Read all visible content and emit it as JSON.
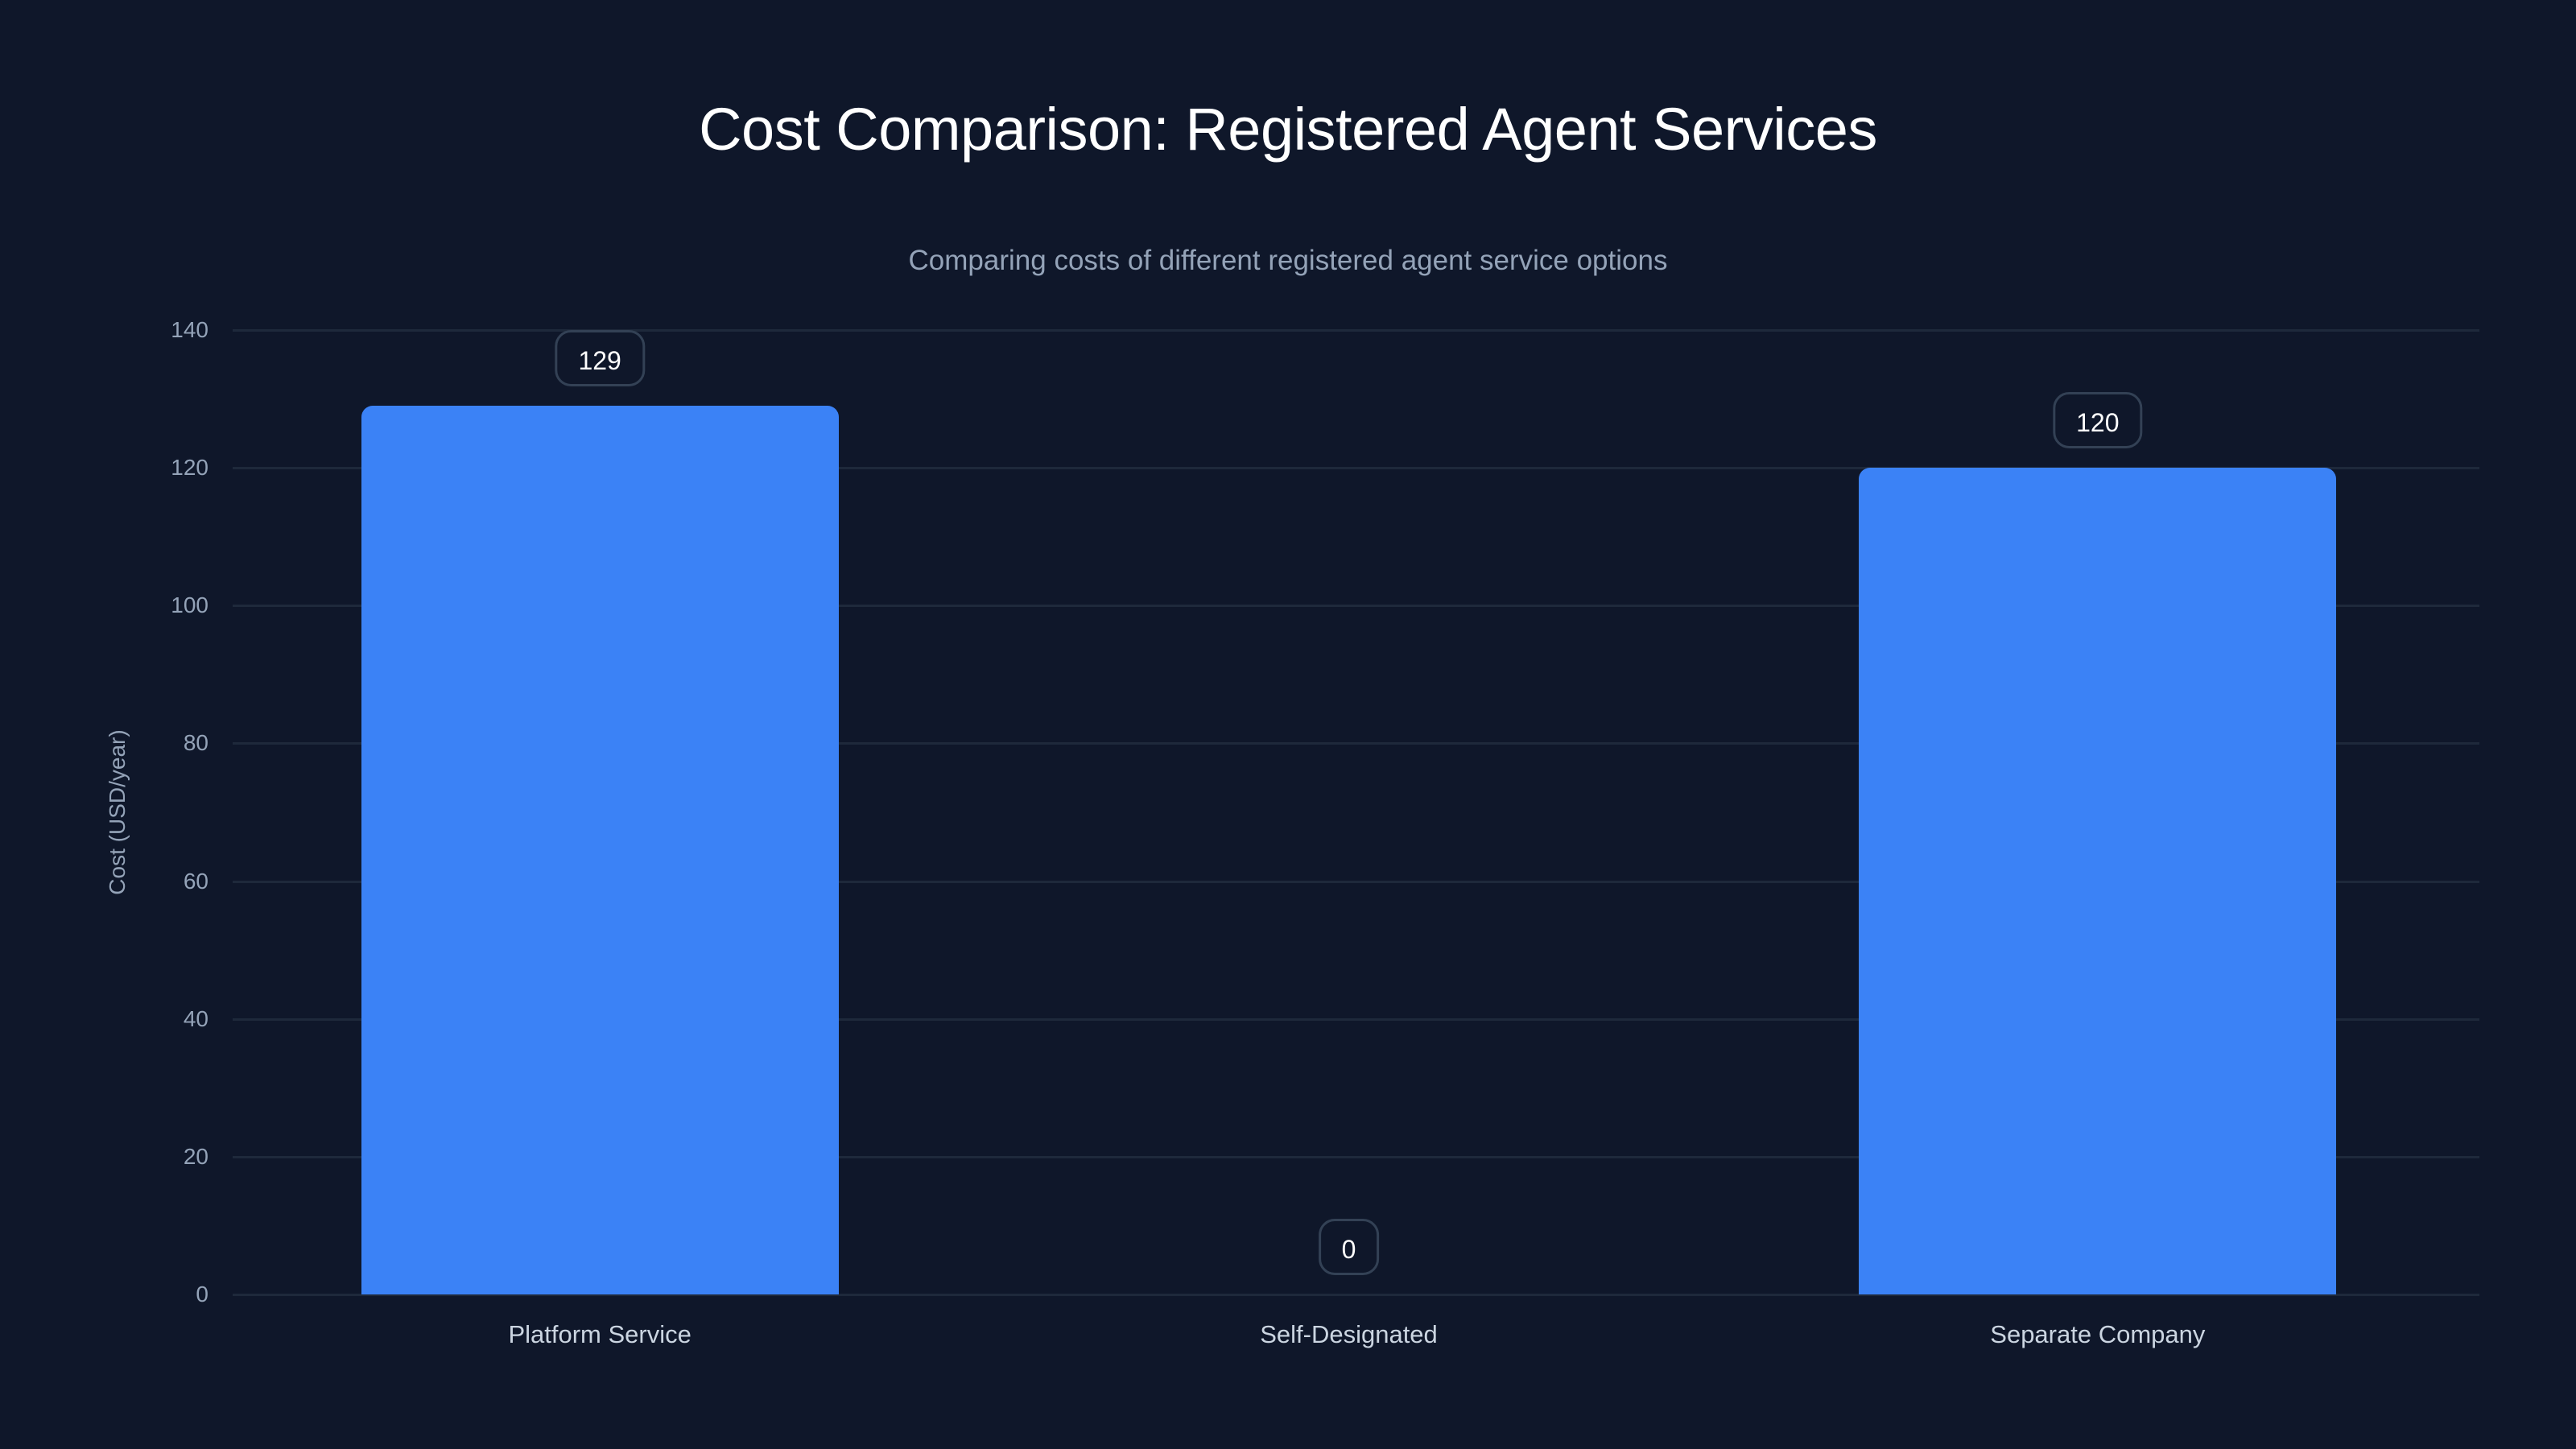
{
  "chart_data": {
    "type": "bar",
    "title": "Cost Comparison: Registered Agent Services",
    "subtitle": "Comparing costs of different registered agent service options",
    "categories": [
      "Platform Service",
      "Self-Designated",
      "Separate Company"
    ],
    "values": [
      129,
      0,
      120
    ],
    "xlabel": "",
    "ylabel": "Cost (USD/year)",
    "ylim": [
      0,
      140
    ],
    "yticks": [
      0,
      20,
      40,
      60,
      80,
      100,
      120,
      140
    ],
    "grid": true,
    "legend": null,
    "data_labels": [
      "129",
      "0",
      "120"
    ],
    "colors": {
      "background": "#0f172a",
      "bar": "#3b82f6",
      "grid": "#1e293b",
      "label_border": "#334155",
      "title": "#ffffff",
      "subtitle": "#94a3b8",
      "tick": "#94a3b8",
      "category": "#cbd5e1"
    }
  },
  "header": {
    "title": "Cost Comparison: Registered Agent Services",
    "subtitle": "Comparing costs of different registered agent service options"
  },
  "axes": {
    "ylabel": "Cost (USD/year)",
    "yticks": [
      "0",
      "20",
      "40",
      "60",
      "80",
      "100",
      "120",
      "140"
    ],
    "categories": [
      "Platform Service",
      "Self-Designated",
      "Separate Company"
    ]
  },
  "bars": [
    {
      "category": "Platform Service",
      "value": 129,
      "label": "129"
    },
    {
      "category": "Self-Designated",
      "value": 0,
      "label": "0"
    },
    {
      "category": "Separate Company",
      "value": 120,
      "label": "120"
    }
  ]
}
